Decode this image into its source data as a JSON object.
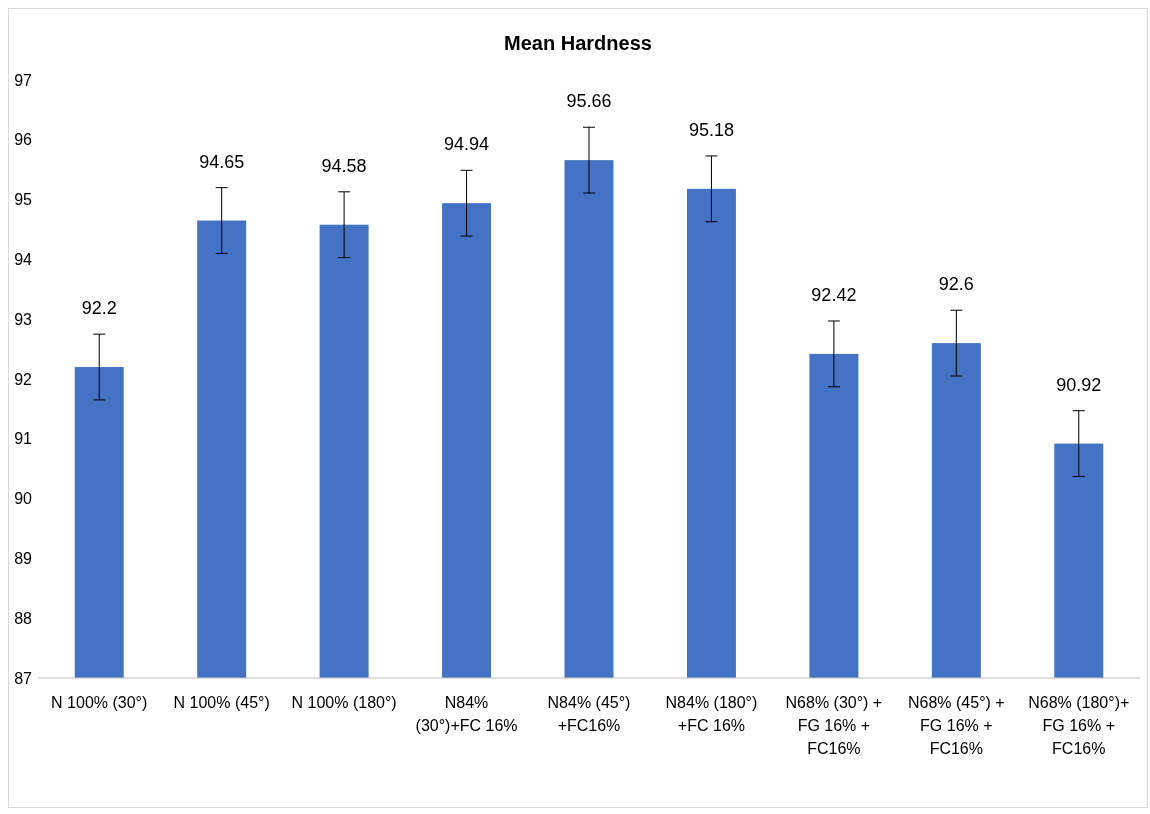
{
  "chart_data": {
    "type": "bar",
    "title": "Mean Hardness",
    "categories": [
      "N 100% (30°)",
      "N 100% (45°)",
      "N 100% (180°)",
      "N84% (30°)+FC 16%",
      "N84% (45°) +FC16%",
      "N84% (180°) +FC 16%",
      "N68% (30°) + FG 16% + FC16%",
      "N68% (45°) + FG 16% + FC16%",
      "N68% (180°)+ FG 16% + FC16%"
    ],
    "values": [
      92.2,
      94.65,
      94.58,
      94.94,
      95.66,
      95.18,
      92.42,
      92.6,
      90.92
    ],
    "errors": [
      0.55,
      0.55,
      0.55,
      0.55,
      0.55,
      0.55,
      0.55,
      0.55,
      0.55
    ],
    "color": "#4472c4",
    "ylim": [
      87,
      97
    ],
    "yticks": [
      87,
      88,
      89,
      90,
      91,
      92,
      93,
      94,
      95,
      96,
      97
    ],
    "data_labels": true,
    "grid": false
  }
}
